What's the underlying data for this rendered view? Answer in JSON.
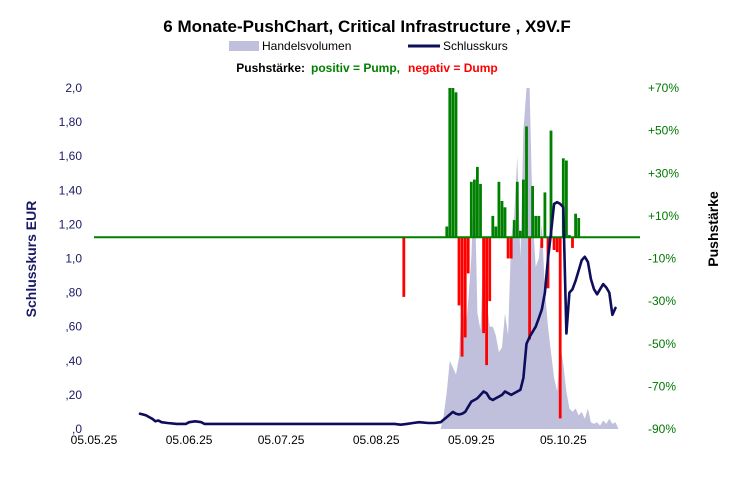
{
  "chart_data": {
    "type": "bar+area+line",
    "title": "6 Monate-PushChart,  Critical Infrastructure , X9V.F",
    "legend": {
      "volume_label": "Handelsvolumen",
      "close_label": "Schlusskurs",
      "placement": "top"
    },
    "push_legend": {
      "prefix": "Pushstärke:",
      "positive": "positiv = Pump,",
      "negative": "negativ = Dump"
    },
    "ylabel_left": "Schlusskurs EUR",
    "ylabel_right": "Pushstärke",
    "y_left_ticks": [
      "2,0",
      "1,80",
      "1,60",
      "1,40",
      "1,20",
      "1,0",
      ",80",
      ",60",
      ",40",
      ",20",
      ",0"
    ],
    "y_left_range": [
      0,
      2.0
    ],
    "y_right_ticks": [
      "+70%",
      "+50%",
      "+30%",
      "+10%",
      "-10%",
      "-30%",
      "-50%",
      "-70%",
      "-90%"
    ],
    "y_right_range": [
      -90,
      70
    ],
    "x_ticks": [
      "05.05.25",
      "05.06.25",
      "05.07.25",
      "05.08.25",
      "05.09.25",
      "05.10.25"
    ],
    "x_range_days": [
      0,
      178
    ],
    "colors": {
      "close": "#0d0d5c",
      "volume": "#c0c0dc",
      "pump": "#008000",
      "dump": "#ff0000",
      "baseline": "#008000",
      "left_axis_text": "#1a1a66",
      "right_axis_text": "#007700"
    },
    "close_series": [
      [
        15,
        0.09
      ],
      [
        16,
        0.085
      ],
      [
        17,
        0.08
      ],
      [
        18,
        0.07
      ],
      [
        19,
        0.06
      ],
      [
        20,
        0.045
      ],
      [
        21,
        0.05
      ],
      [
        22,
        0.04
      ],
      [
        24,
        0.035
      ],
      [
        27,
        0.03
      ],
      [
        30,
        0.03
      ],
      [
        31,
        0.04
      ],
      [
        33,
        0.045
      ],
      [
        35,
        0.04
      ],
      [
        36,
        0.03
      ],
      [
        40,
        0.03
      ],
      [
        50,
        0.03
      ],
      [
        60,
        0.03
      ],
      [
        70,
        0.03
      ],
      [
        80,
        0.03
      ],
      [
        90,
        0.03
      ],
      [
        95,
        0.03
      ],
      [
        98,
        0.03
      ],
      [
        100,
        0.025
      ],
      [
        102,
        0.03
      ],
      [
        104,
        0.035
      ],
      [
        106,
        0.04
      ],
      [
        109,
        0.035
      ],
      [
        111,
        0.035
      ],
      [
        113,
        0.04
      ],
      [
        114,
        0.055
      ],
      [
        115,
        0.07
      ],
      [
        116,
        0.085
      ],
      [
        117,
        0.1
      ],
      [
        118,
        0.09
      ],
      [
        119,
        0.085
      ],
      [
        120,
        0.09
      ],
      [
        121,
        0.1
      ],
      [
        122,
        0.13
      ],
      [
        123,
        0.16
      ],
      [
        124,
        0.17
      ],
      [
        125,
        0.18
      ],
      [
        126,
        0.2
      ],
      [
        127,
        0.22
      ],
      [
        128,
        0.21
      ],
      [
        129,
        0.18
      ],
      [
        130,
        0.17
      ],
      [
        131,
        0.18
      ],
      [
        132,
        0.19
      ],
      [
        133,
        0.2
      ],
      [
        134,
        0.22
      ],
      [
        135,
        0.21
      ],
      [
        136,
        0.2
      ],
      [
        138,
        0.22
      ],
      [
        139,
        0.23
      ],
      [
        140,
        0.3
      ],
      [
        141,
        0.5
      ],
      [
        142,
        0.54
      ],
      [
        143,
        0.57
      ],
      [
        144,
        0.6
      ],
      [
        145,
        0.65
      ],
      [
        146,
        0.7
      ],
      [
        147,
        0.8
      ],
      [
        148,
        1.0
      ],
      [
        149,
        1.15
      ],
      [
        150,
        1.32
      ],
      [
        151,
        1.33
      ],
      [
        152,
        1.32
      ],
      [
        153,
        1.3
      ],
      [
        154,
        0.56
      ],
      [
        155,
        0.8
      ],
      [
        156,
        0.82
      ],
      [
        157,
        0.87
      ],
      [
        158,
        0.93
      ],
      [
        159,
        0.99
      ],
      [
        160,
        1.01
      ],
      [
        161,
        0.98
      ],
      [
        162,
        0.88
      ],
      [
        163,
        0.82
      ],
      [
        164,
        0.79
      ],
      [
        165,
        0.82
      ],
      [
        166,
        0.85
      ],
      [
        167,
        0.83
      ],
      [
        168,
        0.8
      ],
      [
        169,
        0.67
      ],
      [
        170,
        0.71
      ]
    ],
    "volume_series": [
      [
        113,
        0
      ],
      [
        114,
        0.08
      ],
      [
        115,
        0.22
      ],
      [
        116,
        0.4
      ],
      [
        117,
        0.36
      ],
      [
        118,
        0.32
      ],
      [
        119,
        0.42
      ],
      [
        120,
        0.8
      ],
      [
        121,
        0.55
      ],
      [
        122,
        0.75
      ],
      [
        123,
        1.0
      ],
      [
        124,
        1.5
      ],
      [
        125,
        0.68
      ],
      [
        126,
        0.58
      ],
      [
        127,
        1.05
      ],
      [
        128,
        0.75
      ],
      [
        129,
        0.6
      ],
      [
        130,
        0.6
      ],
      [
        131,
        0.55
      ],
      [
        132,
        0.45
      ],
      [
        133,
        0.48
      ],
      [
        134,
        0.68
      ],
      [
        135,
        0.55
      ],
      [
        136,
        1.12
      ],
      [
        137,
        1.25
      ],
      [
        138,
        1.6
      ],
      [
        139,
        1.0
      ],
      [
        140,
        1.75
      ],
      [
        141,
        2.0
      ],
      [
        142,
        2.0
      ],
      [
        143,
        1.25
      ],
      [
        144,
        0.95
      ],
      [
        145,
        1.0
      ],
      [
        146,
        1.2
      ],
      [
        147,
        0.82
      ],
      [
        148,
        0.6
      ],
      [
        149,
        0.45
      ],
      [
        150,
        0.3
      ],
      [
        151,
        0.22
      ],
      [
        152,
        0.5
      ],
      [
        153,
        0.38
      ],
      [
        154,
        0.22
      ],
      [
        155,
        0.12
      ],
      [
        156,
        0.1
      ],
      [
        157,
        0.12
      ],
      [
        158,
        0.08
      ],
      [
        159,
        0.1
      ],
      [
        160,
        0.06
      ],
      [
        161,
        0.12
      ],
      [
        162,
        0.04
      ],
      [
        163,
        0.03
      ],
      [
        164,
        0.04
      ],
      [
        165,
        0.02
      ],
      [
        166,
        0.05
      ],
      [
        167,
        0.03
      ],
      [
        168,
        0.06
      ],
      [
        169,
        0.03
      ],
      [
        170,
        0.04
      ],
      [
        171,
        0
      ]
    ],
    "push_series": [
      [
        101,
        -28
      ],
      [
        115,
        5
      ],
      [
        116,
        70
      ],
      [
        117,
        70
      ],
      [
        118,
        68
      ],
      [
        119,
        -32
      ],
      [
        120,
        -56
      ],
      [
        121,
        -47
      ],
      [
        122,
        -17
      ],
      [
        123,
        26
      ],
      [
        124,
        27
      ],
      [
        125,
        33
      ],
      [
        126,
        25
      ],
      [
        127,
        -45
      ],
      [
        128,
        -60
      ],
      [
        129,
        -30
      ],
      [
        130,
        10
      ],
      [
        131,
        5
      ],
      [
        132,
        26
      ],
      [
        133,
        17
      ],
      [
        134,
        14
      ],
      [
        135,
        -10
      ],
      [
        136,
        -10
      ],
      [
        137,
        8
      ],
      [
        138,
        26
      ],
      [
        139,
        3
      ],
      [
        140,
        27
      ],
      [
        141,
        52
      ],
      [
        142,
        -48
      ],
      [
        143,
        24
      ],
      [
        144,
        10
      ],
      [
        145,
        10
      ],
      [
        146,
        -5
      ],
      [
        147,
        21
      ],
      [
        148,
        -24
      ],
      [
        149,
        50
      ],
      [
        150,
        -6
      ],
      [
        151,
        -7
      ],
      [
        152,
        -85
      ],
      [
        153,
        37
      ],
      [
        154,
        36
      ],
      [
        155,
        1
      ],
      [
        156,
        -5
      ],
      [
        157,
        11
      ],
      [
        158,
        9
      ]
    ]
  }
}
